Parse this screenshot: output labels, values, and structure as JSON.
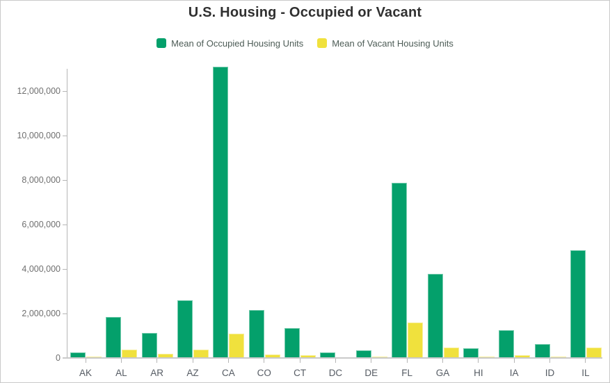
{
  "chart": {
    "title": "U.S. Housing - Occupied or Vacant",
    "legend": [
      {
        "label": "Mean of Occupied Housing Units",
        "color": "#04a06b"
      },
      {
        "label": "Mean of Vacant Housing Units",
        "color": "#f0e13d"
      }
    ]
  },
  "chart_data": {
    "type": "bar",
    "title": "U.S. Housing - Occupied or Vacant",
    "categories": [
      "AK",
      "AL",
      "AR",
      "AZ",
      "CA",
      "CO",
      "CT",
      "DC",
      "DE",
      "FL",
      "GA",
      "HI",
      "IA",
      "ID",
      "IL"
    ],
    "series": [
      {
        "name": "Mean of Occupied Housing Units",
        "key": "occupied",
        "color": "#04a06b",
        "values": [
          240000,
          1860000,
          1130000,
          2600000,
          13100000,
          2150000,
          1350000,
          250000,
          330000,
          7900000,
          3790000,
          440000,
          1240000,
          640000,
          4840000
        ]
      },
      {
        "name": "Mean of Vacant Housing Units",
        "key": "vacant",
        "color": "#f0e13d",
        "values": [
          70000,
          370000,
          190000,
          380000,
          1080000,
          170000,
          110000,
          30000,
          60000,
          1600000,
          470000,
          70000,
          110000,
          60000,
          480000
        ]
      }
    ],
    "xlabel": "",
    "ylabel": "",
    "ylim": [
      0,
      13100000
    ],
    "y_ticks": [
      0,
      2000000,
      4000000,
      6000000,
      8000000,
      10000000,
      12000000
    ],
    "y_tick_labels": [
      "0",
      "2,000,000",
      "4,000,000",
      "6,000,000",
      "8,000,000",
      "10,000,000",
      "12,000,000"
    ],
    "grid": false,
    "legend_position": "top"
  },
  "colors": {
    "title_text": "#303030",
    "legend_text": "#4d5c56",
    "y_tick_text": "#6f6f6f",
    "x_tick_text": "#555b63",
    "axis_line": "#b5b5b5",
    "baseline": "#c9c9c9",
    "background": "#ffffff",
    "frame_border": "#c9c9c9"
  }
}
